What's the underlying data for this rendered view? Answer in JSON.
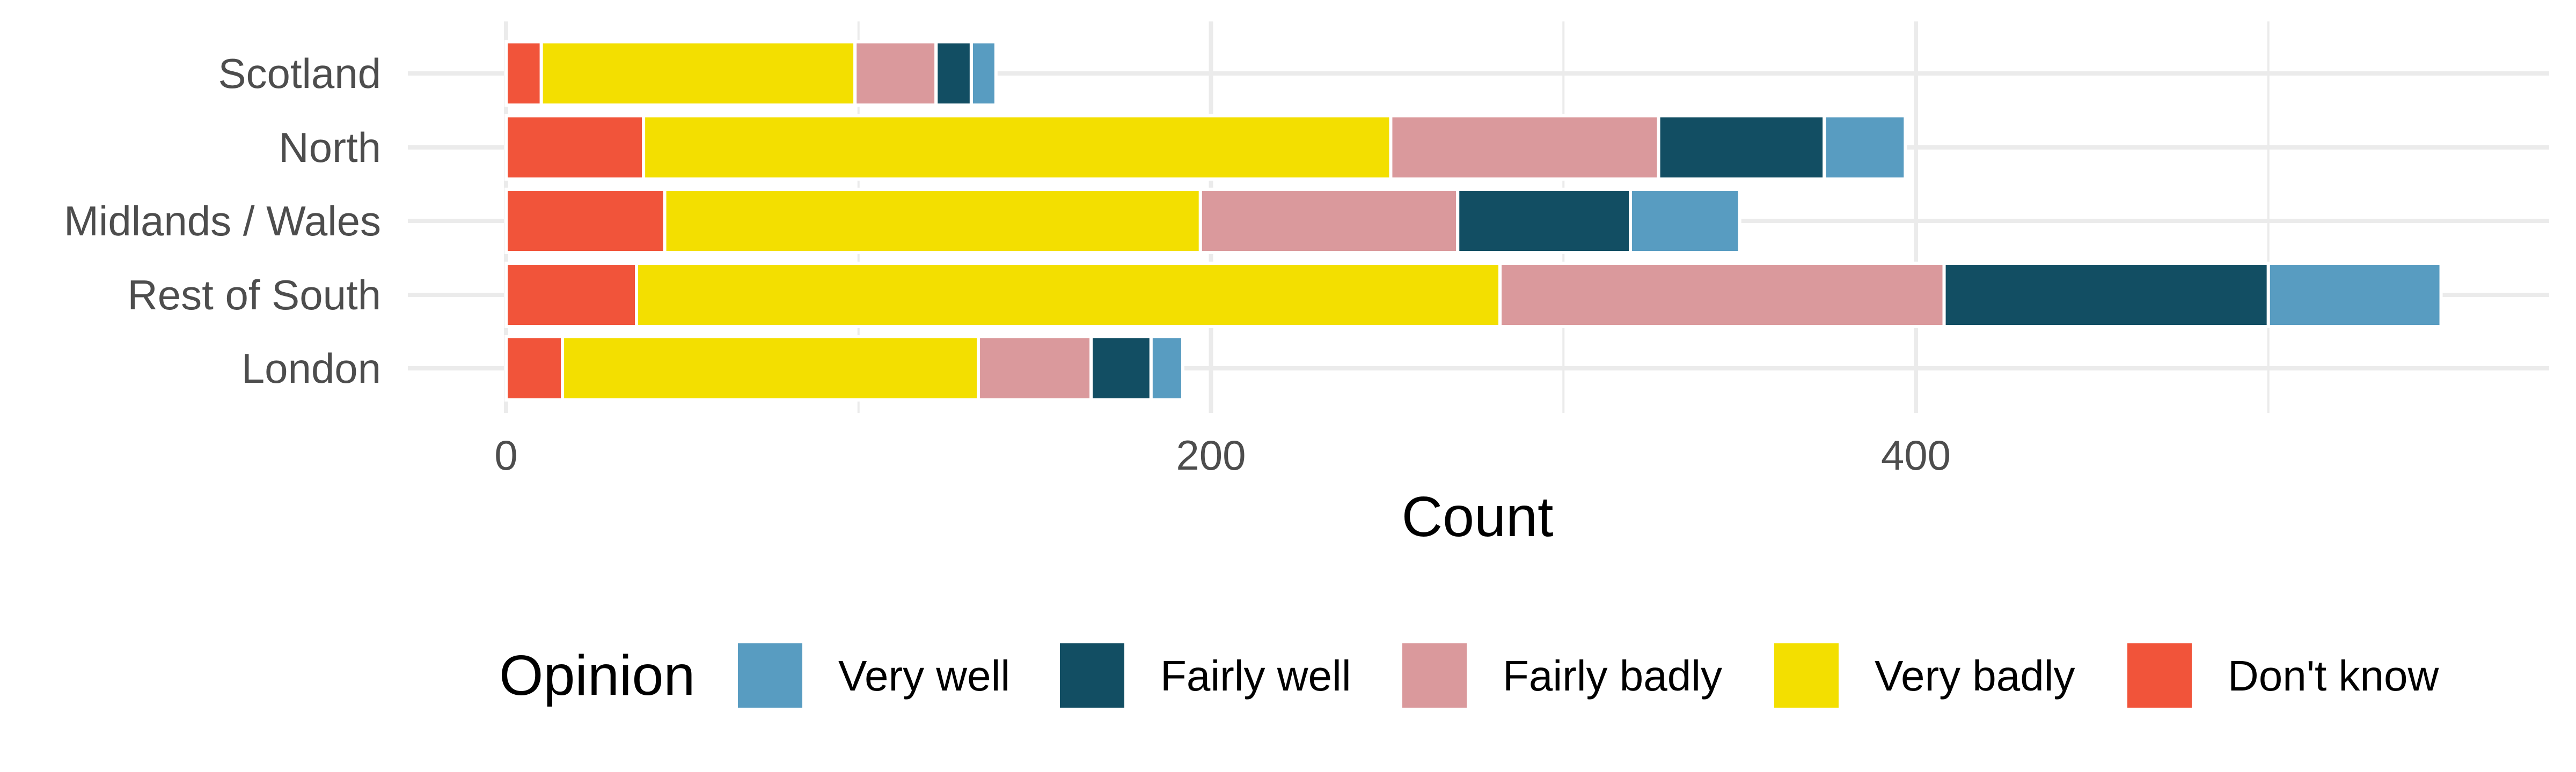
{
  "chart_data": {
    "type": "bar",
    "orientation": "horizontal",
    "stacked": true,
    "categories": [
      "Scotland",
      "North",
      "Midlands / Wales",
      "Rest of South",
      "London"
    ],
    "series": [
      {
        "name": "Don't know",
        "color": "#F1543A",
        "values": [
          10,
          39,
          45,
          37,
          16
        ]
      },
      {
        "name": "Very badly",
        "color": "#F3DF00",
        "values": [
          89,
          212,
          152,
          245,
          118
        ]
      },
      {
        "name": "Fairly badly",
        "color": "#DA999C",
        "values": [
          23,
          76,
          73,
          126,
          32
        ]
      },
      {
        "name": "Fairly well",
        "color": "#124E63",
        "values": [
          10,
          47,
          49,
          92,
          17
        ]
      },
      {
        "name": "Very well",
        "color": "#589CC1",
        "values": [
          7,
          23,
          31,
          49,
          9
        ]
      }
    ],
    "stack_order": [
      "Don't know",
      "Very badly",
      "Fairly badly",
      "Fairly well",
      "Very well"
    ],
    "xlabel": "Count",
    "ylabel": "",
    "xlim": [
      -28,
      580
    ],
    "xticks": [
      0,
      200,
      400
    ],
    "xtick_labels": [
      "0",
      "200",
      "400"
    ],
    "grid": true,
    "legend": {
      "title": "Opinion",
      "position": "bottom",
      "entries": [
        "Very well",
        "Fairly well",
        "Fairly badly",
        "Very badly",
        "Don't know"
      ]
    }
  }
}
